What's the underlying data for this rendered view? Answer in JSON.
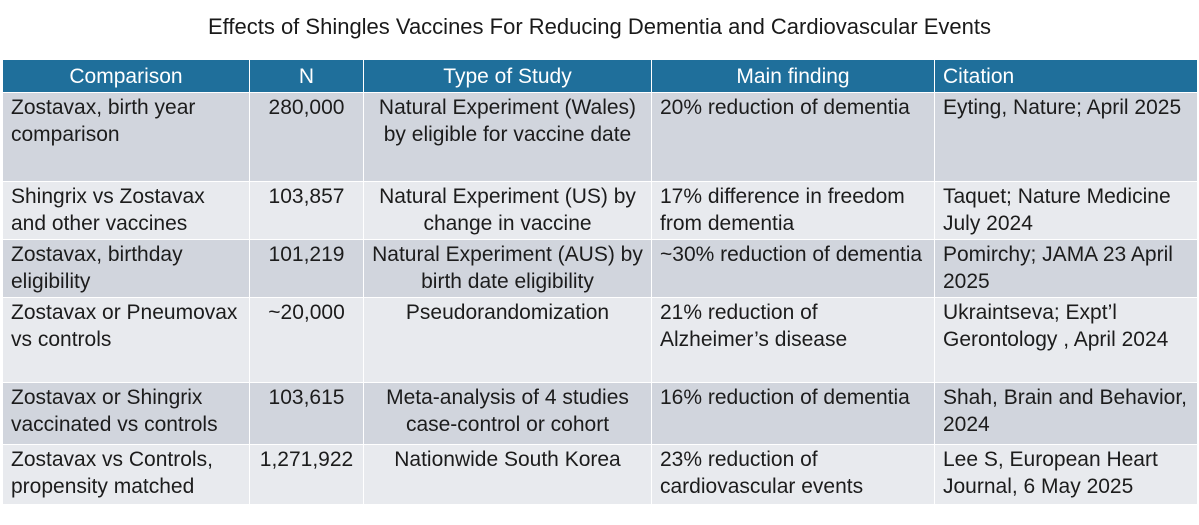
{
  "title": "Effects of Shingles Vaccines For Reducing Dementia and Cardiovascular Events",
  "colors": {
    "header_bg": "#1f6f9b",
    "header_text": "#ffffff",
    "row_dark": "#d1d5dd",
    "row_light": "#e8eaee"
  },
  "table": {
    "headers": [
      "Comparison",
      "N",
      "Type of Study",
      "Main finding",
      "Citation"
    ],
    "rows": [
      [
        "Zostavax, birth year comparison",
        "280,000",
        "Natural Experiment (Wales) by eligible for vaccine date",
        "20% reduction of dementia",
        "Eyting, Nature; April 2025"
      ],
      [
        "Shingrix vs Zostavax and other vaccines",
        "103,857",
        "Natural Experiment (US) by change in vaccine",
        "17% difference in freedom from dementia",
        "Taquet; Nature Medicine July 2024"
      ],
      [
        "Zostavax, birthday eligibility",
        "101,219",
        "Natural Experiment (AUS) by birth date eligibility",
        "~30% reduction of dementia",
        "Pomirchy; JAMA 23 April 2025"
      ],
      [
        "Zostavax or Pneumovax vs controls",
        "~20,000",
        "Pseudorandomization",
        "21% reduction of Alzheimer’s disease",
        "Ukraintseva; Expt’l Gerontology , April 2024"
      ],
      [
        "Zostavax or Shingrix vaccinated vs controls",
        "103,615",
        "Meta-analysis of 4 studies case-control or cohort",
        "16% reduction of dementia",
        "Shah, Brain and Behavior, 2024"
      ],
      [
        "Zostavax vs Controls, propensity matched",
        "1,271,922",
        "Nationwide South Korea",
        "23% reduction of cardiovascular events",
        "Lee S, European Heart Journal, 6 May 2025"
      ]
    ]
  }
}
